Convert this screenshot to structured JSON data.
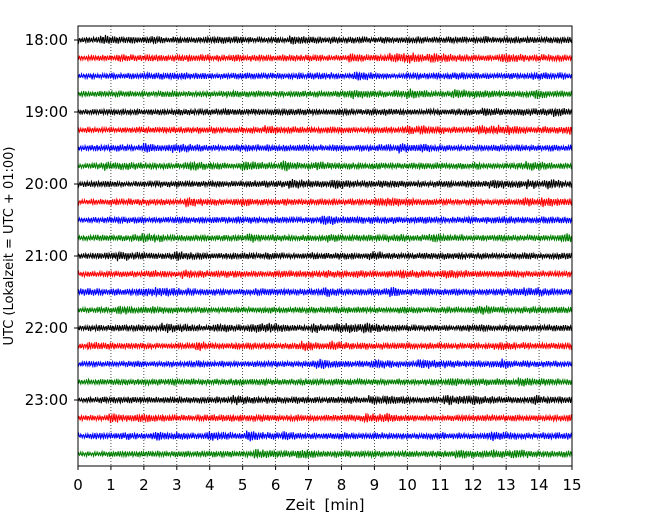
{
  "chart_data": {
    "type": "line",
    "title": "",
    "xlabel": "Zeit  [min]",
    "ylabel": "UTC (Lokalzeit = UTC + 01:00)",
    "xlim": [
      0,
      15
    ],
    "x_ticks": [
      0,
      1,
      2,
      3,
      4,
      5,
      6,
      7,
      8,
      9,
      10,
      11,
      12,
      13,
      14,
      15
    ],
    "x_tick_labels": [
      "0",
      "1",
      "2",
      "3",
      "4",
      "5",
      "6",
      "7",
      "8",
      "9",
      "10",
      "11",
      "12",
      "13",
      "14",
      "15"
    ],
    "y_tick_labels": [
      "18:00",
      "19:00",
      "20:00",
      "21:00",
      "22:00",
      "23:00"
    ],
    "trace_start_times": [
      "18:00",
      "18:15",
      "18:30",
      "18:45",
      "19:00",
      "19:15",
      "19:30",
      "19:45",
      "20:00",
      "20:15",
      "20:30",
      "20:45",
      "21:00",
      "21:15",
      "21:30",
      "21:45",
      "22:00",
      "22:15",
      "22:30",
      "22:45",
      "23:00",
      "23:15",
      "23:30",
      "23:45"
    ],
    "trace_minutes": 15,
    "trace_colors": [
      "#000000",
      "#ff0000",
      "#0000ff",
      "#007f00"
    ],
    "grid": "vertical dotted lines at each minute",
    "legend": "none"
  }
}
